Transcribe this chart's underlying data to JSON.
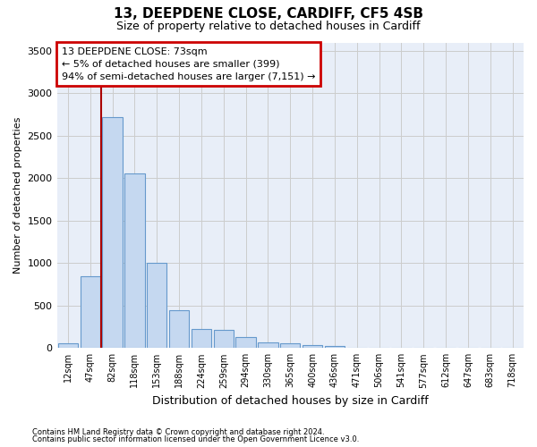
{
  "title_line1": "13, DEEPDENE CLOSE, CARDIFF, CF5 4SB",
  "title_line2": "Size of property relative to detached houses in Cardiff",
  "xlabel": "Distribution of detached houses by size in Cardiff",
  "ylabel": "Number of detached properties",
  "categories": [
    "12sqm",
    "47sqm",
    "82sqm",
    "118sqm",
    "153sqm",
    "188sqm",
    "224sqm",
    "259sqm",
    "294sqm",
    "330sqm",
    "365sqm",
    "400sqm",
    "436sqm",
    "471sqm",
    "506sqm",
    "541sqm",
    "577sqm",
    "612sqm",
    "647sqm",
    "683sqm",
    "718sqm"
  ],
  "bar_values": [
    60,
    850,
    2720,
    2060,
    1000,
    450,
    220,
    215,
    130,
    65,
    55,
    35,
    20,
    5,
    5,
    3,
    3,
    2,
    1,
    1,
    1
  ],
  "bar_color": "#c5d8f0",
  "bar_edge_color": "#6699cc",
  "grid_color": "#cccccc",
  "bg_color": "#e8eef8",
  "vline_x_index": 2,
  "vline_color": "#aa0000",
  "annotation_text": "13 DEEPDENE CLOSE: 73sqm\n← 5% of detached houses are smaller (399)\n94% of semi-detached houses are larger (7,151) →",
  "annotation_box_color": "#cc0000",
  "footnote1": "Contains HM Land Registry data © Crown copyright and database right 2024.",
  "footnote2": "Contains public sector information licensed under the Open Government Licence v3.0.",
  "ylim": [
    0,
    3600
  ],
  "yticks": [
    0,
    500,
    1000,
    1500,
    2000,
    2500,
    3000,
    3500
  ]
}
